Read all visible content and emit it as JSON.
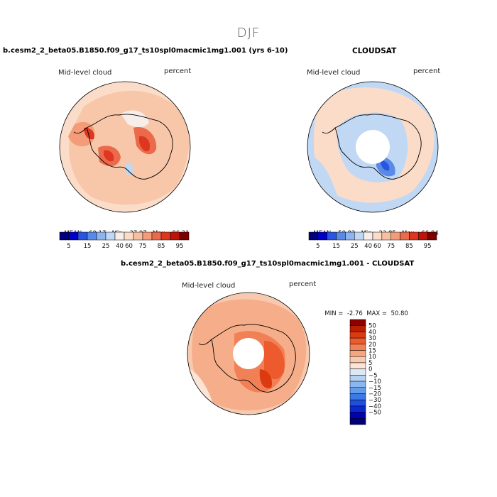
{
  "season": "DJF",
  "colors": {
    "seq": [
      "#00007d",
      "#0000c8",
      "#2a55e0",
      "#5a8ae8",
      "#8db4ee",
      "#c0d8f4",
      "#f7eee9",
      "#fbdcc8",
      "#f8c0a0",
      "#f49c7a",
      "#ec6a4c",
      "#dd3720",
      "#bc1508",
      "#7d0000"
    ],
    "diff": [
      "#00007d",
      "#0000b4",
      "#0a28cc",
      "#1e50dc",
      "#3c78e6",
      "#649ceb",
      "#8cb6ee",
      "#b4d0f3",
      "#dce8f6",
      "#fbe3d5",
      "#f7caaf",
      "#f4a67f",
      "#f28056",
      "#ec5a2e",
      "#dc3a10",
      "#b91e00",
      "#8c0000"
    ]
  },
  "chart_data": [
    {
      "type": "heatmap",
      "panel": "model",
      "title": "b.cesm2_2_beta05.B1850.f09_g17_ts10spl0macmic1mg1.001 (yrs 6-10)",
      "left_label": "Mid-level cloud",
      "right_label": "percent",
      "mean_label": "MEAN=",
      "mean": "60.17",
      "min_label": "Min=",
      "min": "37.97",
      "max_label": "Max=",
      "max": "86.21",
      "colorbar_ticks": [
        "5",
        "15",
        "25",
        "40",
        "60",
        "75",
        "85",
        "95"
      ],
      "projection": "south-polar stereographic"
    },
    {
      "type": "heatmap",
      "panel": "obs",
      "title": "CLOUDSAT",
      "left_label": "Mid-level cloud",
      "right_label": "percent",
      "mean_label": "MEAN=",
      "mean": "50.82",
      "min_label": "Min=",
      "min": "23.85",
      "max_label": "Max=",
      "max": "66.84",
      "colorbar_ticks": [
        "5",
        "15",
        "25",
        "40",
        "60",
        "75",
        "85",
        "95"
      ],
      "projection": "south-polar stereographic"
    },
    {
      "type": "heatmap",
      "panel": "difference",
      "title": "b.cesm2_2_beta05.B1850.f09_g17_ts10spl0macmic1mg1.001 - CLOUDSAT",
      "left_label": "Mid-level cloud",
      "right_label": "percent",
      "min_label": "MIN =",
      "min": "-2.76",
      "max_label": "MAX =",
      "max": "50.80",
      "colorbar_ticks": [
        "50",
        "40",
        "30",
        "20",
        "15",
        "10",
        "5",
        "0",
        "−5",
        "−10",
        "−15",
        "−20",
        "−30",
        "−40",
        "−50"
      ],
      "projection": "south-polar stereographic"
    }
  ]
}
